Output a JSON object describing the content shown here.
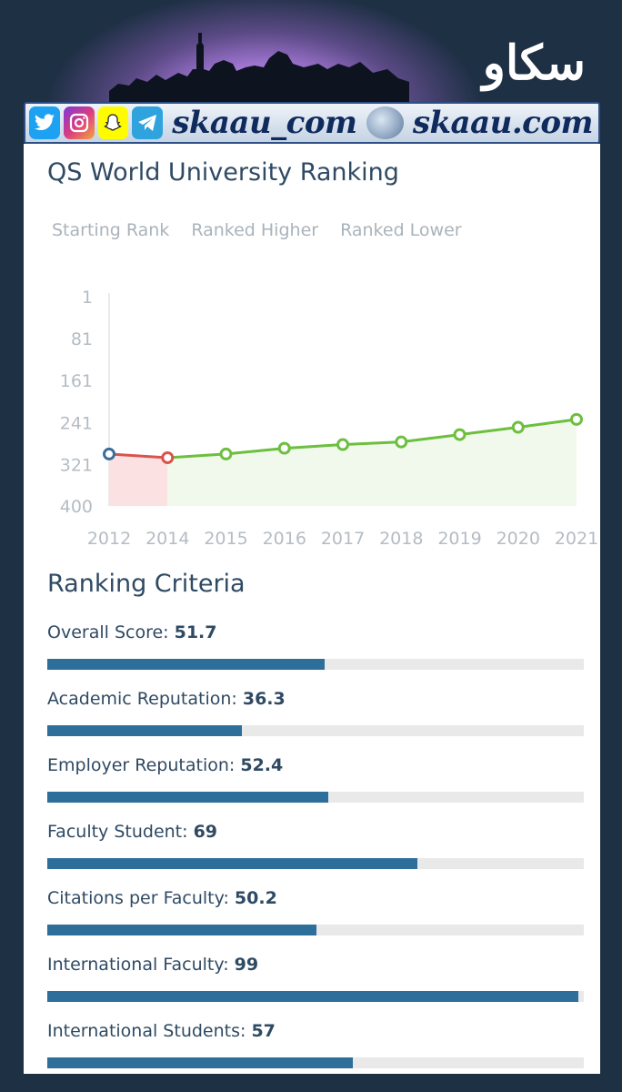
{
  "brand": {
    "arabic": "سكاو",
    "social_handle": "skaau_com",
    "site": "skaau.com",
    "icons": [
      "twitter-icon",
      "instagram-icon",
      "snapchat-icon",
      "telegram-icon"
    ]
  },
  "title": "QS World University Ranking",
  "legend": [
    "Starting Rank",
    "Ranked Higher",
    "Ranked Lower"
  ],
  "chart_data": {
    "type": "line",
    "x": [
      "2012",
      "2014",
      "2015",
      "2016",
      "2017",
      "2018",
      "2019",
      "2020",
      "2021"
    ],
    "series": [
      {
        "name": "Ranked Lower",
        "color": "#d9534f",
        "fill": "#fbe1e1",
        "points": [
          {
            "x": "2012",
            "y": 301
          },
          {
            "x": "2014",
            "y": 308
          }
        ]
      },
      {
        "name": "Ranked Higher",
        "color": "#6cbf3f",
        "fill": "#f1f9ec",
        "points": [
          {
            "x": "2014",
            "y": 308
          },
          {
            "x": "2015",
            "y": 301
          },
          {
            "x": "2016",
            "y": 290
          },
          {
            "x": "2017",
            "y": 283
          },
          {
            "x": "2018",
            "y": 278
          },
          {
            "x": "2019",
            "y": 264
          },
          {
            "x": "2020",
            "y": 250
          },
          {
            "x": "2021",
            "y": 235
          }
        ]
      }
    ],
    "starting_point": {
      "x": "2012",
      "y": 301,
      "color": "#3a6f9c"
    },
    "yticks": [
      "1",
      "81",
      "161",
      "241",
      "321",
      "400"
    ],
    "ylim": [
      1,
      400
    ],
    "y_inverted": true
  },
  "criteria_title": "Ranking Criteria",
  "criteria": [
    {
      "label": "Overall Score: ",
      "value": "51.7",
      "pct": 51.7
    },
    {
      "label": "Academic Reputation: ",
      "value": "36.3",
      "pct": 36.3
    },
    {
      "label": "Employer Reputation: ",
      "value": "52.4",
      "pct": 52.4
    },
    {
      "label": "Faculty Student: ",
      "value": "69",
      "pct": 69
    },
    {
      "label": "Citations per Faculty: ",
      "value": "50.2",
      "pct": 50.2
    },
    {
      "label": "International Faculty: ",
      "value": "99",
      "pct": 99
    },
    {
      "label": "International Students: ",
      "value": "57",
      "pct": 57
    }
  ]
}
